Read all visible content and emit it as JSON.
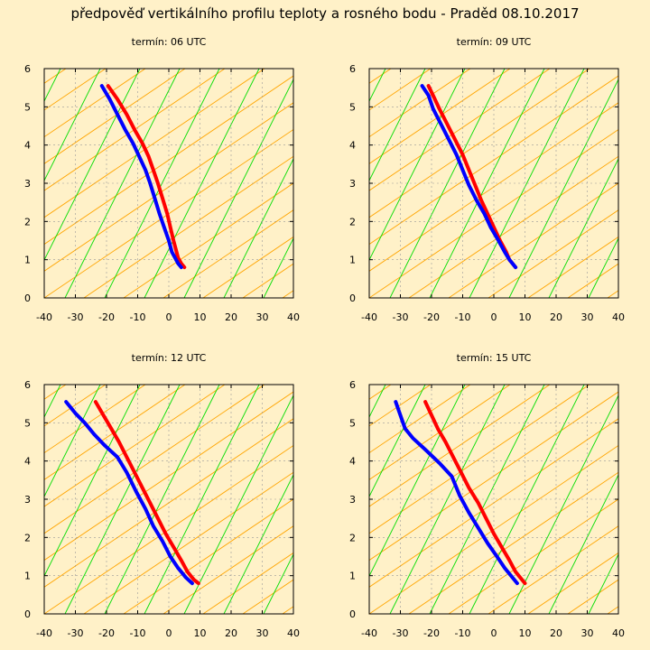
{
  "title": "předpověď vertikálního profilu teploty a rosného bodu - Praděd 08.10.2017",
  "colors": {
    "background": "#fff1c8",
    "temperature": "#ff0000",
    "dewpoint": "#0000ff",
    "dry_adiabat": "#ffa500",
    "moist_adiabat": "#00dd00",
    "grid": "#999999"
  },
  "chart_data": [
    {
      "type": "line",
      "title": "termín: 06 UTC",
      "xlim": [
        -40,
        40
      ],
      "ylim": [
        0,
        6
      ],
      "xticks": [
        -40,
        -30,
        -20,
        -10,
        0,
        10,
        20,
        30,
        40
      ],
      "yticks": [
        0,
        1,
        2,
        3,
        4,
        5,
        6
      ],
      "grid": true,
      "series": [
        {
          "key": "temperature",
          "x": [
            -19.5,
            -16.5,
            -13.5,
            -11,
            -8.5,
            -6.5,
            -5,
            -3.5,
            -2,
            -0.5,
            0.5,
            1.5,
            2.5,
            3,
            4,
            5
          ],
          "y": [
            5.55,
            5.2,
            4.8,
            4.4,
            4.05,
            3.7,
            3.35,
            3,
            2.6,
            2.2,
            1.85,
            1.5,
            1.2,
            1.05,
            0.9,
            0.8
          ]
        },
        {
          "key": "dewpoint",
          "x": [
            -21.5,
            -19,
            -16.5,
            -14,
            -11.5,
            -9.5,
            -7.5,
            -6,
            -4.5,
            -3,
            -1.5,
            0,
            1,
            2,
            3,
            4
          ],
          "y": [
            5.55,
            5.2,
            4.8,
            4.4,
            4.05,
            3.7,
            3.35,
            3,
            2.6,
            2.2,
            1.85,
            1.5,
            1.2,
            1.05,
            0.9,
            0.8
          ]
        }
      ]
    },
    {
      "type": "line",
      "title": "termín: 09 UTC",
      "xlim": [
        -40,
        40
      ],
      "ylim": [
        0,
        6
      ],
      "xticks": [
        -40,
        -30,
        -20,
        -10,
        0,
        10,
        20,
        30,
        40
      ],
      "yticks": [
        0,
        1,
        2,
        3,
        4,
        5,
        6
      ],
      "grid": true,
      "series": [
        {
          "key": "temperature",
          "x": [
            -21,
            -19.5,
            -17.5,
            -15,
            -12.5,
            -10,
            -8,
            -6,
            -4,
            -2,
            0,
            2,
            4,
            5,
            6,
            7
          ],
          "y": [
            5.55,
            5.3,
            4.95,
            4.55,
            4.15,
            3.75,
            3.35,
            2.95,
            2.55,
            2.2,
            1.85,
            1.5,
            1.2,
            1.0,
            0.9,
            0.8
          ]
        },
        {
          "key": "dewpoint",
          "x": [
            -23,
            -21,
            -19.5,
            -17,
            -14.5,
            -12,
            -10,
            -8,
            -5.5,
            -3,
            -1,
            1.5,
            3.5,
            5,
            6,
            7
          ],
          "y": [
            5.55,
            5.3,
            4.95,
            4.55,
            4.15,
            3.75,
            3.35,
            2.95,
            2.55,
            2.2,
            1.85,
            1.5,
            1.2,
            1.0,
            0.9,
            0.8
          ]
        }
      ]
    },
    {
      "type": "line",
      "title": "termín: 12 UTC",
      "xlim": [
        -40,
        40
      ],
      "ylim": [
        0,
        6
      ],
      "xticks": [
        -40,
        -30,
        -20,
        -10,
        0,
        10,
        20,
        30,
        40
      ],
      "yticks": [
        0,
        1,
        2,
        3,
        4,
        5,
        6
      ],
      "grid": true,
      "series": [
        {
          "key": "temperature",
          "x": [
            -23.5,
            -21,
            -18.5,
            -16,
            -13.5,
            -11,
            -8.5,
            -6,
            -3.5,
            -1,
            1.5,
            4,
            6,
            8,
            9.5
          ],
          "y": [
            5.55,
            5.2,
            4.85,
            4.5,
            4.1,
            3.7,
            3.3,
            2.9,
            2.5,
            2.1,
            1.75,
            1.4,
            1.1,
            0.9,
            0.8
          ]
        },
        {
          "key": "dewpoint",
          "x": [
            -33,
            -30,
            -27,
            -24,
            -20.5,
            -16.5,
            -13.5,
            -10.5,
            -7.5,
            -5,
            -2,
            0.5,
            3,
            5.5,
            7.5
          ],
          "y": [
            5.55,
            5.25,
            5.0,
            4.7,
            4.4,
            4.1,
            3.7,
            3.2,
            2.75,
            2.3,
            1.9,
            1.5,
            1.2,
            0.95,
            0.8
          ]
        }
      ]
    },
    {
      "type": "line",
      "title": "termín: 15 UTC",
      "xlim": [
        -40,
        40
      ],
      "ylim": [
        0,
        6
      ],
      "xticks": [
        -40,
        -30,
        -20,
        -10,
        0,
        10,
        20,
        30,
        40
      ],
      "yticks": [
        0,
        1,
        2,
        3,
        4,
        5,
        6
      ],
      "grid": true,
      "series": [
        {
          "key": "temperature",
          "x": [
            -22,
            -20,
            -18,
            -15.5,
            -13,
            -10.5,
            -8,
            -5,
            -2.5,
            0,
            2.5,
            5,
            7,
            9,
            10
          ],
          "y": [
            5.55,
            5.2,
            4.85,
            4.5,
            4.1,
            3.7,
            3.3,
            2.9,
            2.5,
            2.1,
            1.75,
            1.4,
            1.1,
            0.9,
            0.8
          ]
        },
        {
          "key": "dewpoint",
          "x": [
            -31.5,
            -30,
            -28.5,
            -26,
            -22,
            -17.5,
            -13.5,
            -11,
            -8,
            -5,
            -2,
            1,
            3.5,
            6,
            7.5
          ],
          "y": [
            5.55,
            5.2,
            4.85,
            4.6,
            4.3,
            3.95,
            3.6,
            3.1,
            2.65,
            2.25,
            1.85,
            1.5,
            1.2,
            0.95,
            0.8
          ]
        }
      ]
    }
  ]
}
